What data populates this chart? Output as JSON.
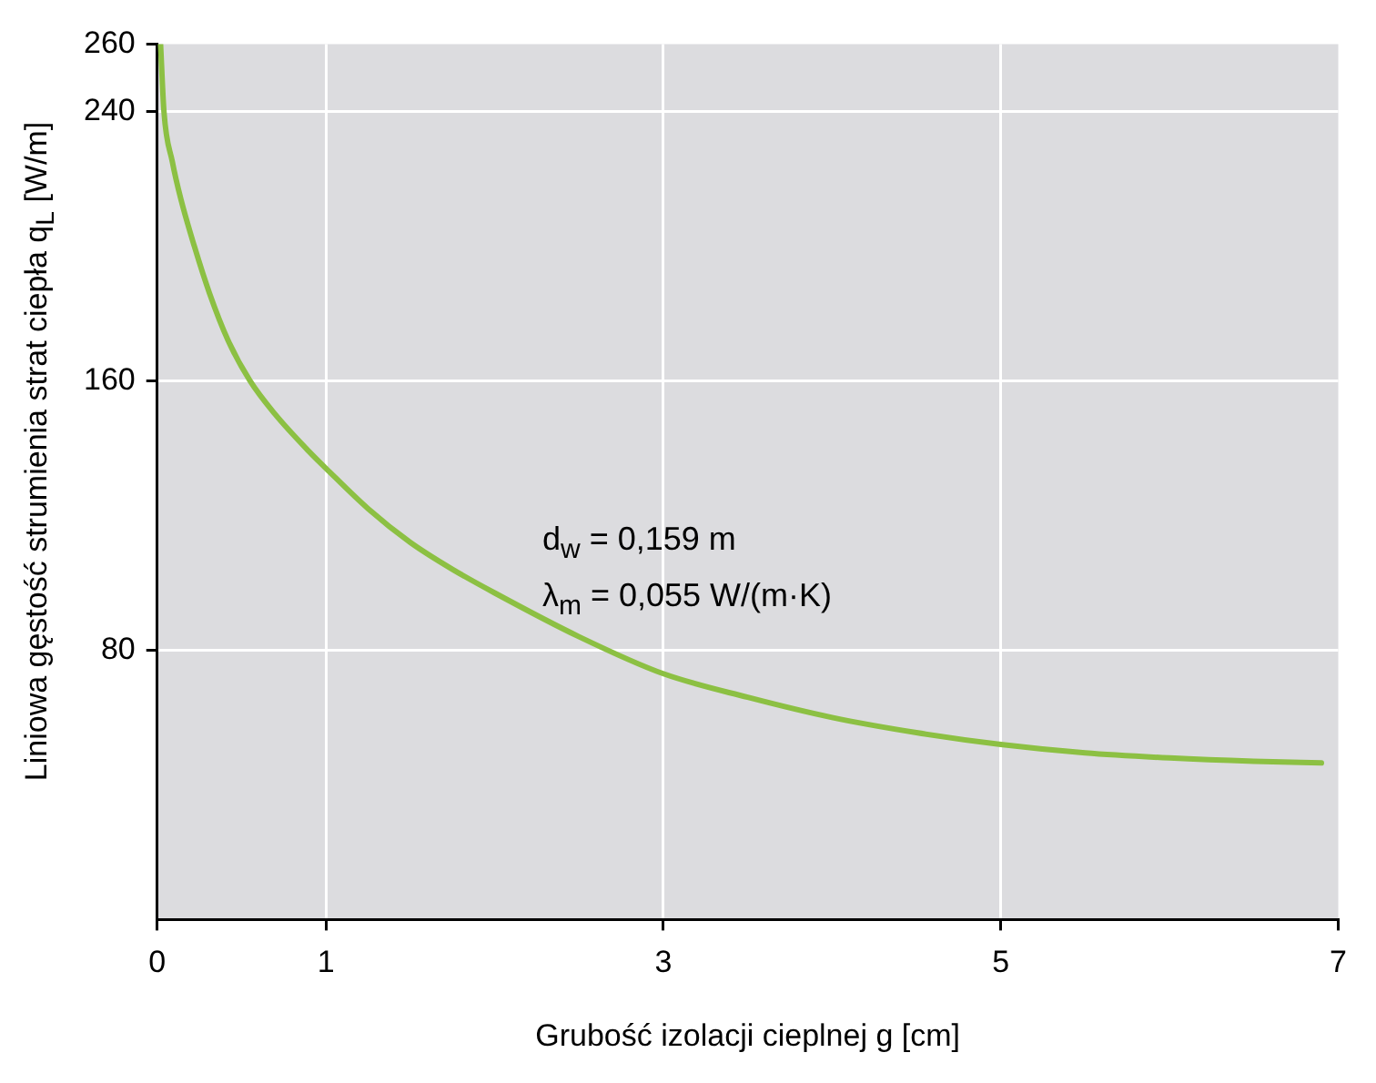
{
  "chart_data": {
    "type": "line",
    "xlabel": "Grubość izolacji cieplnej g [cm]",
    "ylabel": "Liniowa gęstość strumienia strat ciepła q$_{L}$ [W/m]",
    "annotations": [
      "d$_{w}$ = 0,159 m",
      "λ$_{m}$ = 0,055 W/(m·K)"
    ],
    "series": [
      {
        "color": "#8cc043",
        "x": [
          0.02,
          0.04,
          0.09,
          0.14,
          0.22,
          0.31,
          0.42,
          0.55,
          0.7,
          0.9,
          1,
          1.25,
          1.5,
          1.75,
          2,
          2.5,
          3,
          3.5,
          4,
          4.5,
          5,
          5.5,
          6,
          6.5,
          6.9
        ],
        "values": [
          260,
          240,
          225,
          214,
          200,
          186,
          172,
          160,
          150,
          139,
          134,
          122,
          112,
          104,
          97,
          84,
          73,
          66,
          60,
          55.5,
          52,
          49.5,
          48,
          47,
          46.5
        ]
      }
    ],
    "xlim": [
      0,
      7
    ],
    "xticks": [
      0,
      1,
      3,
      5,
      7
    ],
    "ylim": [
      0,
      260
    ],
    "yticks": [
      80,
      160,
      240,
      260
    ],
    "grid": true,
    "legend": false,
    "marker": "none",
    "line_style": "solid"
  }
}
